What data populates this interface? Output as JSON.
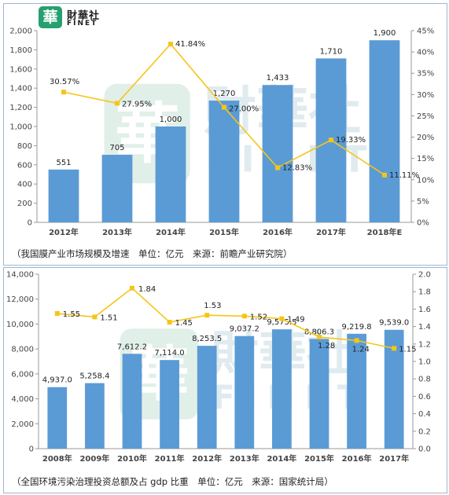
{
  "logo": {
    "name_cn": "財華社",
    "name_en": "FINET",
    "mark": "華"
  },
  "watermark": {
    "name_cn": "財華社",
    "name_en": "FINET",
    "mark": "華"
  },
  "chart_data": [
    {
      "type": "bar",
      "caption": "（我国膜产业市场规模及增速　单位：亿元　来源：前瞻产业研究院）",
      "categories": [
        "2012年",
        "2013年",
        "2014年",
        "2015年",
        "2016年",
        "2017年",
        "2018年E"
      ],
      "series": [
        {
          "values": [
            551,
            705,
            1000,
            1270,
            1433,
            1710,
            1900
          ],
          "labels": [
            "551",
            "705",
            "1,000",
            "1,270",
            "1,433",
            "1,710",
            "1,900"
          ],
          "color": "#5b9bd5",
          "axis": "left"
        },
        {
          "type": "line",
          "values": [
            30.57,
            27.95,
            41.84,
            27.0,
            12.83,
            19.33,
            11.11
          ],
          "labels": [
            "30.57%",
            "27.95%",
            "41.84%",
            "27.00%",
            "12.83%",
            "19.33%",
            "11.11%"
          ],
          "color": "#f5c518",
          "axis": "right"
        }
      ],
      "ylim": [
        0,
        2000
      ],
      "yticks": [
        "0",
        "200",
        "400",
        "600",
        "800",
        "1,000",
        "1,200",
        "1,400",
        "1,600",
        "1,800",
        "2,000"
      ],
      "y2lim": [
        0,
        45
      ],
      "y2ticks": [
        "0%",
        "5%",
        "10%",
        "15%",
        "20%",
        "25%",
        "30%",
        "35%",
        "40%",
        "45%"
      ],
      "grid": false,
      "legend": "none"
    },
    {
      "type": "bar",
      "caption": "（全国环境污染治理投资总额及占 gdp 比重　单位：亿元　来源：国家统计局）",
      "categories": [
        "2008年",
        "2009年",
        "2010年",
        "2011年",
        "2012年",
        "2013年",
        "2014年",
        "2015年",
        "2016年",
        "2017年"
      ],
      "series": [
        {
          "values": [
            4937.0,
            5258.4,
            7612.2,
            7114.0,
            8253.5,
            9037.2,
            9575.5,
            8806.3,
            9219.8,
            9539.0
          ],
          "labels": [
            "4,937.0",
            "5,258.4",
            "7,612.2",
            "7,114.0",
            "8,253.5",
            "9,037.2",
            "9,575.5",
            "8,806.3",
            "9,219.8",
            "9,539.0"
          ],
          "color": "#5b9bd5",
          "axis": "left"
        },
        {
          "type": "line",
          "values": [
            1.55,
            1.51,
            1.84,
            1.45,
            1.53,
            1.52,
            1.49,
            1.28,
            1.24,
            1.15
          ],
          "labels": [
            "1.55",
            "1.51",
            "1.84",
            "1.45",
            "1.53",
            "1.52",
            "1.49",
            "1.28",
            "1.24",
            "1.15"
          ],
          "color": "#f5c518",
          "axis": "right"
        }
      ],
      "ylim": [
        0,
        14000
      ],
      "yticks": [
        "0",
        "2,000",
        "4,000",
        "6,000",
        "8,000",
        "10,000",
        "12,000",
        "14,000"
      ],
      "y2lim": [
        0,
        2.0
      ],
      "y2ticks": [
        "0.0",
        "0.2",
        "0.4",
        "0.6",
        "0.8",
        "1.0",
        "1.2",
        "1.4",
        "1.6",
        "1.8",
        "2.0"
      ],
      "grid": false,
      "legend": "none"
    }
  ]
}
